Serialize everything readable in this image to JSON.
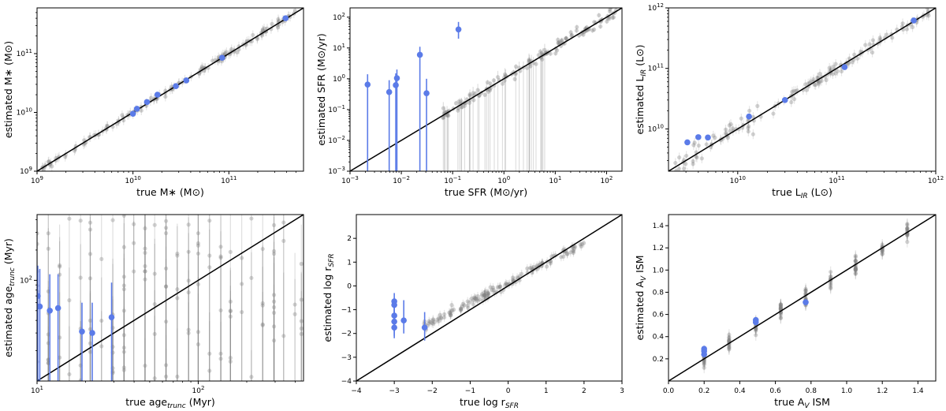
{
  "chart_data": [
    {
      "type": "scatter",
      "id": "mstar",
      "scale": "log",
      "xlabel": "true M∗ (M⊙)",
      "ylabel": "estimated M∗ (M⊙)",
      "xlim": [
        1000000000.0,
        600000000000.0
      ],
      "ylim": [
        1000000000.0,
        600000000000.0
      ],
      "xticks": [
        {
          "v": 1000000000.0,
          "t": "10",
          "e": "9"
        },
        {
          "v": 10000000000.0,
          "t": "10",
          "e": "10"
        },
        {
          "v": 100000000000.0,
          "t": "10",
          "e": "11"
        }
      ],
      "yticks": [
        {
          "v": 1000000000.0,
          "t": "10",
          "e": "9"
        },
        {
          "v": 10000000000.0,
          "t": "10",
          "e": "10"
        },
        {
          "v": 100000000000.0,
          "t": "10",
          "e": "11"
        }
      ],
      "highlight_points": [
        {
          "x": 10000000000.0,
          "y": 9500000000.0
        },
        {
          "x": 11000000000.0,
          "y": 11500000000.0
        },
        {
          "x": 14000000000.0,
          "y": 15000000000.0
        },
        {
          "x": 18000000000.0,
          "y": 20000000000.0
        },
        {
          "x": 28000000000.0,
          "y": 28000000000.0
        },
        {
          "x": 36000000000.0,
          "y": 35000000000.0
        },
        {
          "x": 85000000000.0,
          "y": 85000000000.0
        },
        {
          "x": 390000000000.0,
          "y": 400000000000.0
        }
      ]
    },
    {
      "type": "scatter",
      "id": "sfr",
      "scale": "log",
      "xlabel": "true SFR (M⊙/yr)",
      "ylabel": "estimated SFR (M⊙/yr)",
      "xlim": [
        0.001,
        200.0
      ],
      "ylim": [
        0.001,
        200.0
      ],
      "xticks": [
        {
          "v": 0.001,
          "t": "10",
          "e": "−3"
        },
        {
          "v": 0.01,
          "t": "10",
          "e": "−2"
        },
        {
          "v": 0.1,
          "t": "10",
          "e": "−1"
        },
        {
          "v": 1,
          "t": "10",
          "e": "0"
        },
        {
          "v": 10,
          "t": "10",
          "e": "1"
        },
        {
          "v": 100,
          "t": "10",
          "e": "2"
        }
      ],
      "yticks": [
        {
          "v": 0.001,
          "t": "10",
          "e": "−3"
        },
        {
          "v": 0.01,
          "t": "10",
          "e": "−2"
        },
        {
          "v": 0.1,
          "t": "10",
          "e": "−1"
        },
        {
          "v": 1,
          "t": "10",
          "e": "0"
        },
        {
          "v": 10,
          "t": "10",
          "e": "1"
        },
        {
          "v": 100,
          "t": "10",
          "e": "2"
        }
      ],
      "highlight_points": [
        {
          "x": 0.0022,
          "y": 0.65,
          "lo": 0.001,
          "hi": 1.4
        },
        {
          "x": 0.0058,
          "y": 0.37,
          "lo": 0.001,
          "hi": 0.9
        },
        {
          "x": 0.0078,
          "y": 0.62,
          "lo": 0.001,
          "hi": 1.5
        },
        {
          "x": 0.0082,
          "y": 1.05,
          "lo": 0.001,
          "hi": 2.0
        },
        {
          "x": 0.023,
          "y": 6.0,
          "lo": 0.001,
          "hi": 11
        },
        {
          "x": 0.031,
          "y": 0.34,
          "lo": 0.001,
          "hi": 1.0
        },
        {
          "x": 0.13,
          "y": 40,
          "lo": 20,
          "hi": 70
        }
      ]
    },
    {
      "type": "scatter",
      "id": "lir",
      "scale": "log",
      "xlabel": "true L_IR (L⊙)",
      "ylabel": "estimated L_IR (L⊙)",
      "xlim": [
        2000000000.0,
        1000000000000.0
      ],
      "ylim": [
        2000000000.0,
        1000000000000.0
      ],
      "xticks": [
        {
          "v": 10000000000.0,
          "t": "10",
          "e": "10"
        },
        {
          "v": 100000000000.0,
          "t": "10",
          "e": "11"
        },
        {
          "v": 1000000000000.0,
          "t": "10",
          "e": "12"
        }
      ],
      "yticks": [
        {
          "v": 10000000000.0,
          "t": "10",
          "e": "10"
        },
        {
          "v": 100000000000.0,
          "t": "10",
          "e": "11"
        },
        {
          "v": 1000000000000.0,
          "t": "10",
          "e": "12"
        }
      ],
      "highlight_points": [
        {
          "x": 3100000000.0,
          "y": 6000000000.0
        },
        {
          "x": 4000000000.0,
          "y": 7300000000.0
        },
        {
          "x": 5000000000.0,
          "y": 7200000000.0
        },
        {
          "x": 13000000000.0,
          "y": 16000000000.0
        },
        {
          "x": 30000000000.0,
          "y": 30000000000.0
        },
        {
          "x": 120000000000.0,
          "y": 105000000000.0
        },
        {
          "x": 600000000000.0,
          "y": 620000000000.0
        }
      ]
    },
    {
      "type": "scatter",
      "id": "age",
      "scale": "log",
      "xlabel": "true age_trunc (Myr)",
      "ylabel": "estimated age_trunc (Myr)",
      "xlim": [
        10,
        450
      ],
      "ylim": [
        10,
        450
      ],
      "xticks": [
        {
          "v": 10,
          "t": "10",
          "e": "1"
        },
        {
          "v": 100,
          "t": "10",
          "e": "2"
        }
      ],
      "yticks": [
        {
          "v": 100,
          "t": "10",
          "e": "2"
        }
      ],
      "highlight_points": [
        {
          "x": 10.1,
          "y": 70,
          "lo": 10,
          "hi": 140
        },
        {
          "x": 10.4,
          "y": 55,
          "lo": 10,
          "hi": 130
        },
        {
          "x": 12.0,
          "y": 50,
          "lo": 10,
          "hi": 115
        },
        {
          "x": 13.5,
          "y": 53,
          "lo": 10,
          "hi": 115
        },
        {
          "x": 19.0,
          "y": 31,
          "lo": 10,
          "hi": 60
        },
        {
          "x": 22.0,
          "y": 30,
          "lo": 10,
          "hi": 60
        },
        {
          "x": 29.0,
          "y": 43,
          "lo": 10,
          "hi": 95
        }
      ]
    },
    {
      "type": "scatter",
      "id": "rsfr",
      "scale": "linear",
      "xlabel": "true log r_SFR",
      "ylabel": "estimated log r_SFR",
      "xlim": [
        -4,
        3
      ],
      "ylim": [
        -4,
        3
      ],
      "xticks": [
        {
          "v": -4,
          "t": "−4"
        },
        {
          "v": -3,
          "t": "−3"
        },
        {
          "v": -2,
          "t": "−2"
        },
        {
          "v": -1,
          "t": "−1"
        },
        {
          "v": 0,
          "t": "0"
        },
        {
          "v": 1,
          "t": "1"
        },
        {
          "v": 2,
          "t": "2"
        },
        {
          "v": 3,
          "t": "3"
        }
      ],
      "yticks": [
        {
          "v": -4,
          "t": "−4"
        },
        {
          "v": -3,
          "t": "−3"
        },
        {
          "v": -2,
          "t": "−2"
        },
        {
          "v": -1,
          "t": "−1"
        },
        {
          "v": 0,
          "t": "0"
        },
        {
          "v": 1,
          "t": "1"
        },
        {
          "v": 2,
          "t": "2"
        }
      ],
      "highlight_points": [
        {
          "x": -3.0,
          "y": -0.65,
          "lo": -1.3,
          "hi": -0.3
        },
        {
          "x": -3.0,
          "y": -0.8,
          "lo": -1.5,
          "hi": -0.5
        },
        {
          "x": -3.0,
          "y": -1.25,
          "lo": -1.9,
          "hi": -0.8
        },
        {
          "x": -3.0,
          "y": -1.5,
          "lo": -2.1,
          "hi": -1.0
        },
        {
          "x": -3.0,
          "y": -1.75,
          "lo": -2.2,
          "hi": -1.3
        },
        {
          "x": -2.75,
          "y": -1.45,
          "lo": -2.0,
          "hi": -0.6
        },
        {
          "x": -2.2,
          "y": -1.75,
          "lo": -2.3,
          "hi": -1.1
        }
      ]
    },
    {
      "type": "scatter",
      "id": "av",
      "scale": "linear",
      "xlabel": "true A_V ISM",
      "ylabel": "estimated A_V ISM",
      "xlim": [
        0.0,
        1.5
      ],
      "ylim": [
        0.0,
        1.5
      ],
      "xticks": [
        {
          "v": 0.0,
          "t": "0.0"
        },
        {
          "v": 0.2,
          "t": "0.2"
        },
        {
          "v": 0.4,
          "t": "0.4"
        },
        {
          "v": 0.6,
          "t": "0.6"
        },
        {
          "v": 0.8,
          "t": "0.8"
        },
        {
          "v": 1.0,
          "t": "1.0"
        },
        {
          "v": 1.2,
          "t": "1.2"
        },
        {
          "v": 1.4,
          "t": "1.4"
        }
      ],
      "yticks": [
        {
          "v": 0.2,
          "t": "0.2"
        },
        {
          "v": 0.4,
          "t": "0.4"
        },
        {
          "v": 0.6,
          "t": "0.6"
        },
        {
          "v": 0.8,
          "t": "0.8"
        },
        {
          "v": 1.0,
          "t": "1.0"
        },
        {
          "v": 1.2,
          "t": "1.2"
        },
        {
          "v": 1.4,
          "t": "1.4"
        }
      ],
      "highlight_points": [
        {
          "x": 0.2,
          "y": 0.24
        },
        {
          "x": 0.2,
          "y": 0.27
        },
        {
          "x": 0.2,
          "y": 0.29
        },
        {
          "x": 0.49,
          "y": 0.53
        },
        {
          "x": 0.49,
          "y": 0.55
        },
        {
          "x": 0.77,
          "y": 0.71
        }
      ]
    }
  ],
  "colors": {
    "highlight": "#5b7be8",
    "background_points": "#808080",
    "one_to_one": "#000000"
  }
}
